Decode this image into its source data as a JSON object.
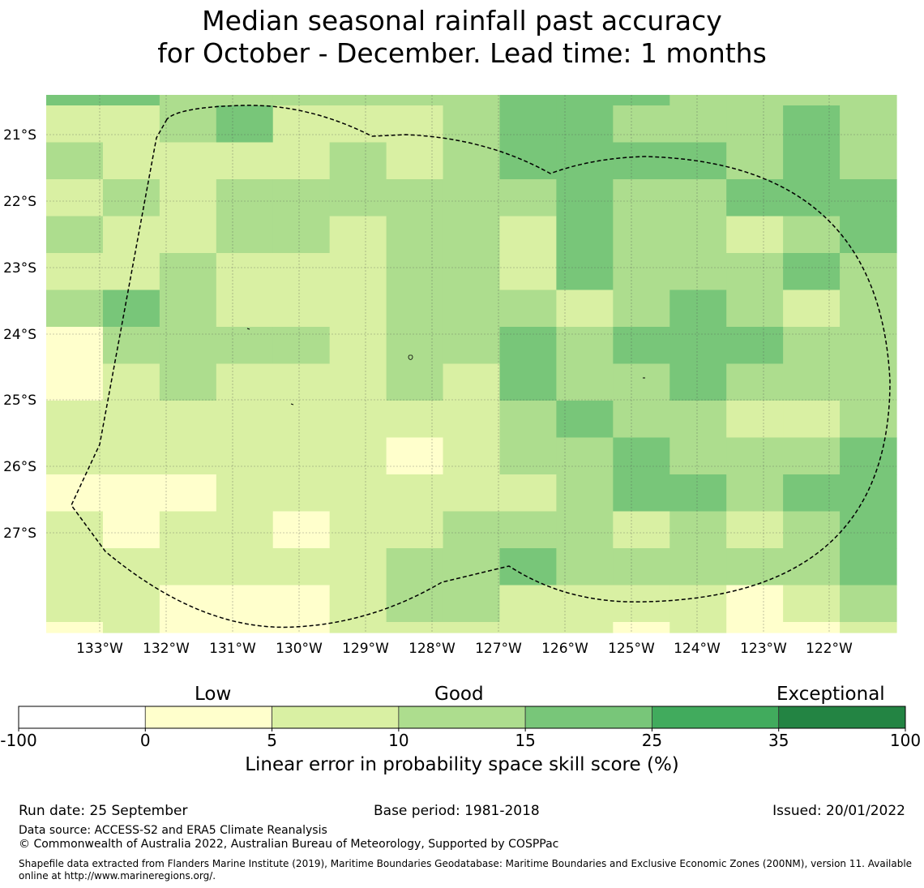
{
  "title": {
    "line1": "Median seasonal rainfall past accuracy",
    "line2": "for October - December. Lead time: 1 months"
  },
  "map": {
    "lat_labels": [
      "21°S",
      "22°S",
      "23°S",
      "24°S",
      "25°S",
      "26°S",
      "27°S"
    ],
    "lon_labels": [
      "133°W",
      "132°W",
      "131°W",
      "130°W",
      "129°W",
      "128°W",
      "127°W",
      "126°W",
      "125°W",
      "124°W",
      "123°W",
      "122°W"
    ],
    "boundary": "Exclusive Economic Zone (200NM) boundary",
    "grid_cols": 15,
    "grid_rows": 15,
    "first_row_half": true,
    "skill_grid": [
      [
        3,
        3,
        2,
        2,
        2,
        2,
        2,
        2,
        3,
        3,
        3,
        2,
        2,
        2,
        2
      ],
      [
        1,
        1,
        2,
        3,
        1,
        1,
        1,
        2,
        3,
        3,
        2,
        2,
        2,
        3,
        2
      ],
      [
        2,
        1,
        1,
        1,
        1,
        2,
        1,
        2,
        3,
        3,
        3,
        3,
        2,
        3,
        2
      ],
      [
        1,
        2,
        1,
        2,
        2,
        2,
        2,
        2,
        2,
        3,
        2,
        2,
        3,
        3,
        3
      ],
      [
        2,
        1,
        1,
        2,
        2,
        1,
        2,
        2,
        1,
        3,
        2,
        2,
        1,
        2,
        3
      ],
      [
        1,
        1,
        2,
        1,
        1,
        1,
        2,
        2,
        1,
        3,
        2,
        2,
        2,
        3,
        2
      ],
      [
        2,
        3,
        2,
        1,
        1,
        1,
        2,
        2,
        2,
        1,
        2,
        3,
        2,
        1,
        2
      ],
      [
        0,
        2,
        2,
        2,
        2,
        1,
        2,
        2,
        3,
        2,
        3,
        3,
        3,
        2,
        2
      ],
      [
        0,
        1,
        2,
        1,
        1,
        1,
        2,
        1,
        3,
        2,
        2,
        3,
        2,
        2,
        2
      ],
      [
        1,
        1,
        1,
        1,
        1,
        1,
        1,
        1,
        2,
        3,
        2,
        2,
        1,
        1,
        2
      ],
      [
        1,
        1,
        1,
        1,
        1,
        1,
        0,
        1,
        2,
        2,
        3,
        2,
        2,
        2,
        3
      ],
      [
        0,
        0,
        0,
        1,
        1,
        1,
        1,
        1,
        1,
        2,
        3,
        3,
        2,
        3,
        3
      ],
      [
        1,
        0,
        1,
        1,
        0,
        1,
        1,
        2,
        2,
        2,
        1,
        2,
        1,
        2,
        3
      ],
      [
        1,
        1,
        1,
        1,
        1,
        1,
        2,
        2,
        3,
        2,
        2,
        2,
        2,
        2,
        3
      ],
      [
        1,
        1,
        0,
        0,
        0,
        1,
        2,
        2,
        1,
        1,
        1,
        1,
        0,
        1,
        2
      ],
      [
        0,
        1,
        0,
        0,
        0,
        1,
        1,
        1,
        1,
        1,
        0,
        1,
        0,
        0,
        1
      ]
    ]
  },
  "colorbar": {
    "words": [
      "Low",
      "Good",
      "Exceptional"
    ],
    "ticks": [
      "-100",
      "0",
      "5",
      "10",
      "15",
      "25",
      "35",
      "100"
    ],
    "colors": [
      "#ffffff",
      "#ffffcc",
      "#d9f0a3",
      "#addd8e",
      "#78c679",
      "#41ab5d",
      "#238443"
    ],
    "label": "Linear error in probability space skill score (%)"
  },
  "footer": {
    "run_date": "Run date: 25 September",
    "base_period": "Base period: 1981-2018",
    "issued": "Issued: 20/01/2022",
    "data_source": "Data source: ACCESS-S2 and ERA5 Climate Reanalysis",
    "copyright": "© Commonwealth of Australia 2022, Australian Bureau of Meteorology, Supported by COSPPac",
    "shapefile": "Shapefile data extracted from Flanders Marine Institute (2019), Maritime Boundaries Geodatabase: Maritime Boundaries and Exclusive Economic Zones (200NM), version 11. Available online at http://www.marineregions.org/."
  }
}
